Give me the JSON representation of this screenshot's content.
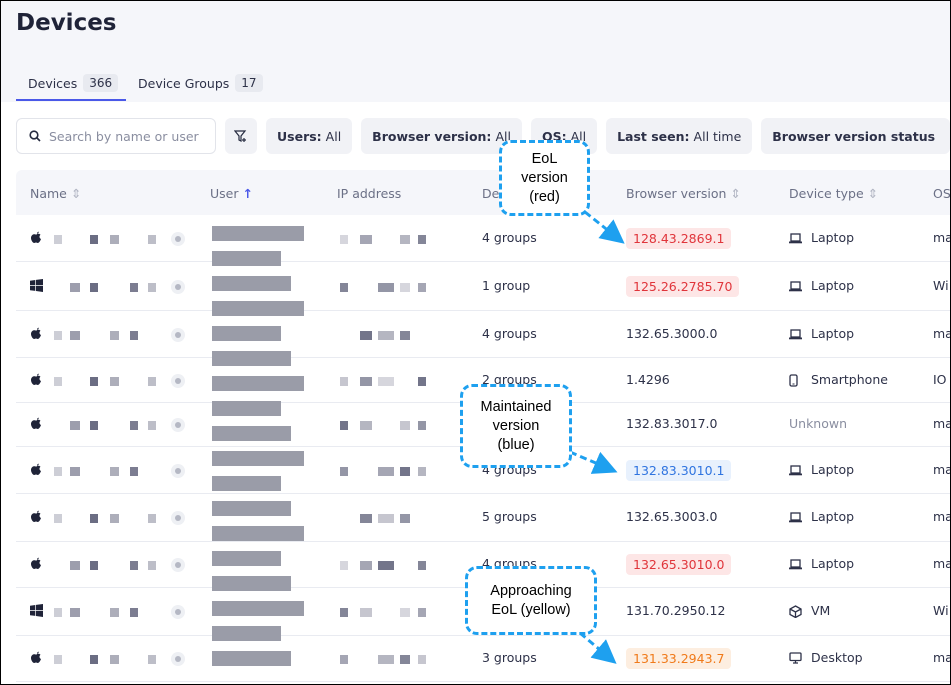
{
  "title": "Devices",
  "tabs": [
    {
      "label": "Devices",
      "count": "366"
    },
    {
      "label": "Device Groups",
      "count": "17"
    }
  ],
  "search": {
    "placeholder": "Search by name or user"
  },
  "filters": [
    {
      "key": "Users:",
      "value": "All"
    },
    {
      "key": "Browser version:",
      "value": "All"
    },
    {
      "key": "OS:",
      "value": "All"
    },
    {
      "key": "Last seen:",
      "value": "All time"
    },
    {
      "key": "Browser version status",
      "value": ""
    }
  ],
  "columns": [
    "Name",
    "User",
    "IP address",
    "De",
    "Browser version",
    "Device type",
    "OS"
  ],
  "rows": [
    {
      "os_icon": "apple",
      "groups": "4 groups",
      "version": "128.43.2869.1",
      "status": "eol",
      "type": "Laptop",
      "type_icon": "laptop",
      "os": "ma"
    },
    {
      "os_icon": "windows",
      "groups": "1 group",
      "version": "125.26.2785.70",
      "status": "eol",
      "type": "Laptop",
      "type_icon": "laptop",
      "os": "Wi"
    },
    {
      "os_icon": "apple",
      "groups": "4 groups",
      "version": "132.65.3000.0",
      "status": "none",
      "type": "Laptop",
      "type_icon": "laptop",
      "os": "ma"
    },
    {
      "os_icon": "apple",
      "groups": "2 groups",
      "version": "1.4296",
      "status": "none",
      "type": "Smartphone",
      "type_icon": "phone",
      "os": "IO"
    },
    {
      "os_icon": "apple",
      "groups": "",
      "version": "132.83.3017.0",
      "status": "none",
      "type": "Unknown",
      "type_icon": "",
      "os": "ma"
    },
    {
      "os_icon": "apple",
      "groups": "4 groups",
      "version": "132.83.3010.1",
      "status": "maintained",
      "type": "Laptop",
      "type_icon": "laptop",
      "os": "ma"
    },
    {
      "os_icon": "apple",
      "groups": "5 groups",
      "version": "132.65.3003.0",
      "status": "none",
      "type": "Laptop",
      "type_icon": "laptop",
      "os": "ma"
    },
    {
      "os_icon": "apple",
      "groups": "4 groups",
      "version": "132.65.3010.0",
      "status": "eol",
      "type": "Laptop",
      "type_icon": "laptop",
      "os": "ma"
    },
    {
      "os_icon": "windows",
      "groups": "",
      "version": "131.70.2950.12",
      "status": "none",
      "type": "VM",
      "type_icon": "cube",
      "os": "Wi"
    },
    {
      "os_icon": "apple",
      "groups": "3 groups",
      "version": "131.33.2943.7",
      "status": "approaching",
      "type": "Desktop",
      "type_icon": "desktop",
      "os": "ma"
    }
  ],
  "status_colors": {
    "eol": {
      "bg": "#fde6e6",
      "fg": "#e0353b"
    },
    "maintained": {
      "bg": "#e8f1fd",
      "fg": "#2f74e0"
    },
    "approaching": {
      "bg": "#fdeee0",
      "fg": "#f07a1a"
    }
  },
  "callouts": {
    "eol": "EoL version (red)",
    "maintained": "Maintained version (blue)",
    "approaching": "Approaching EoL (yellow)"
  }
}
